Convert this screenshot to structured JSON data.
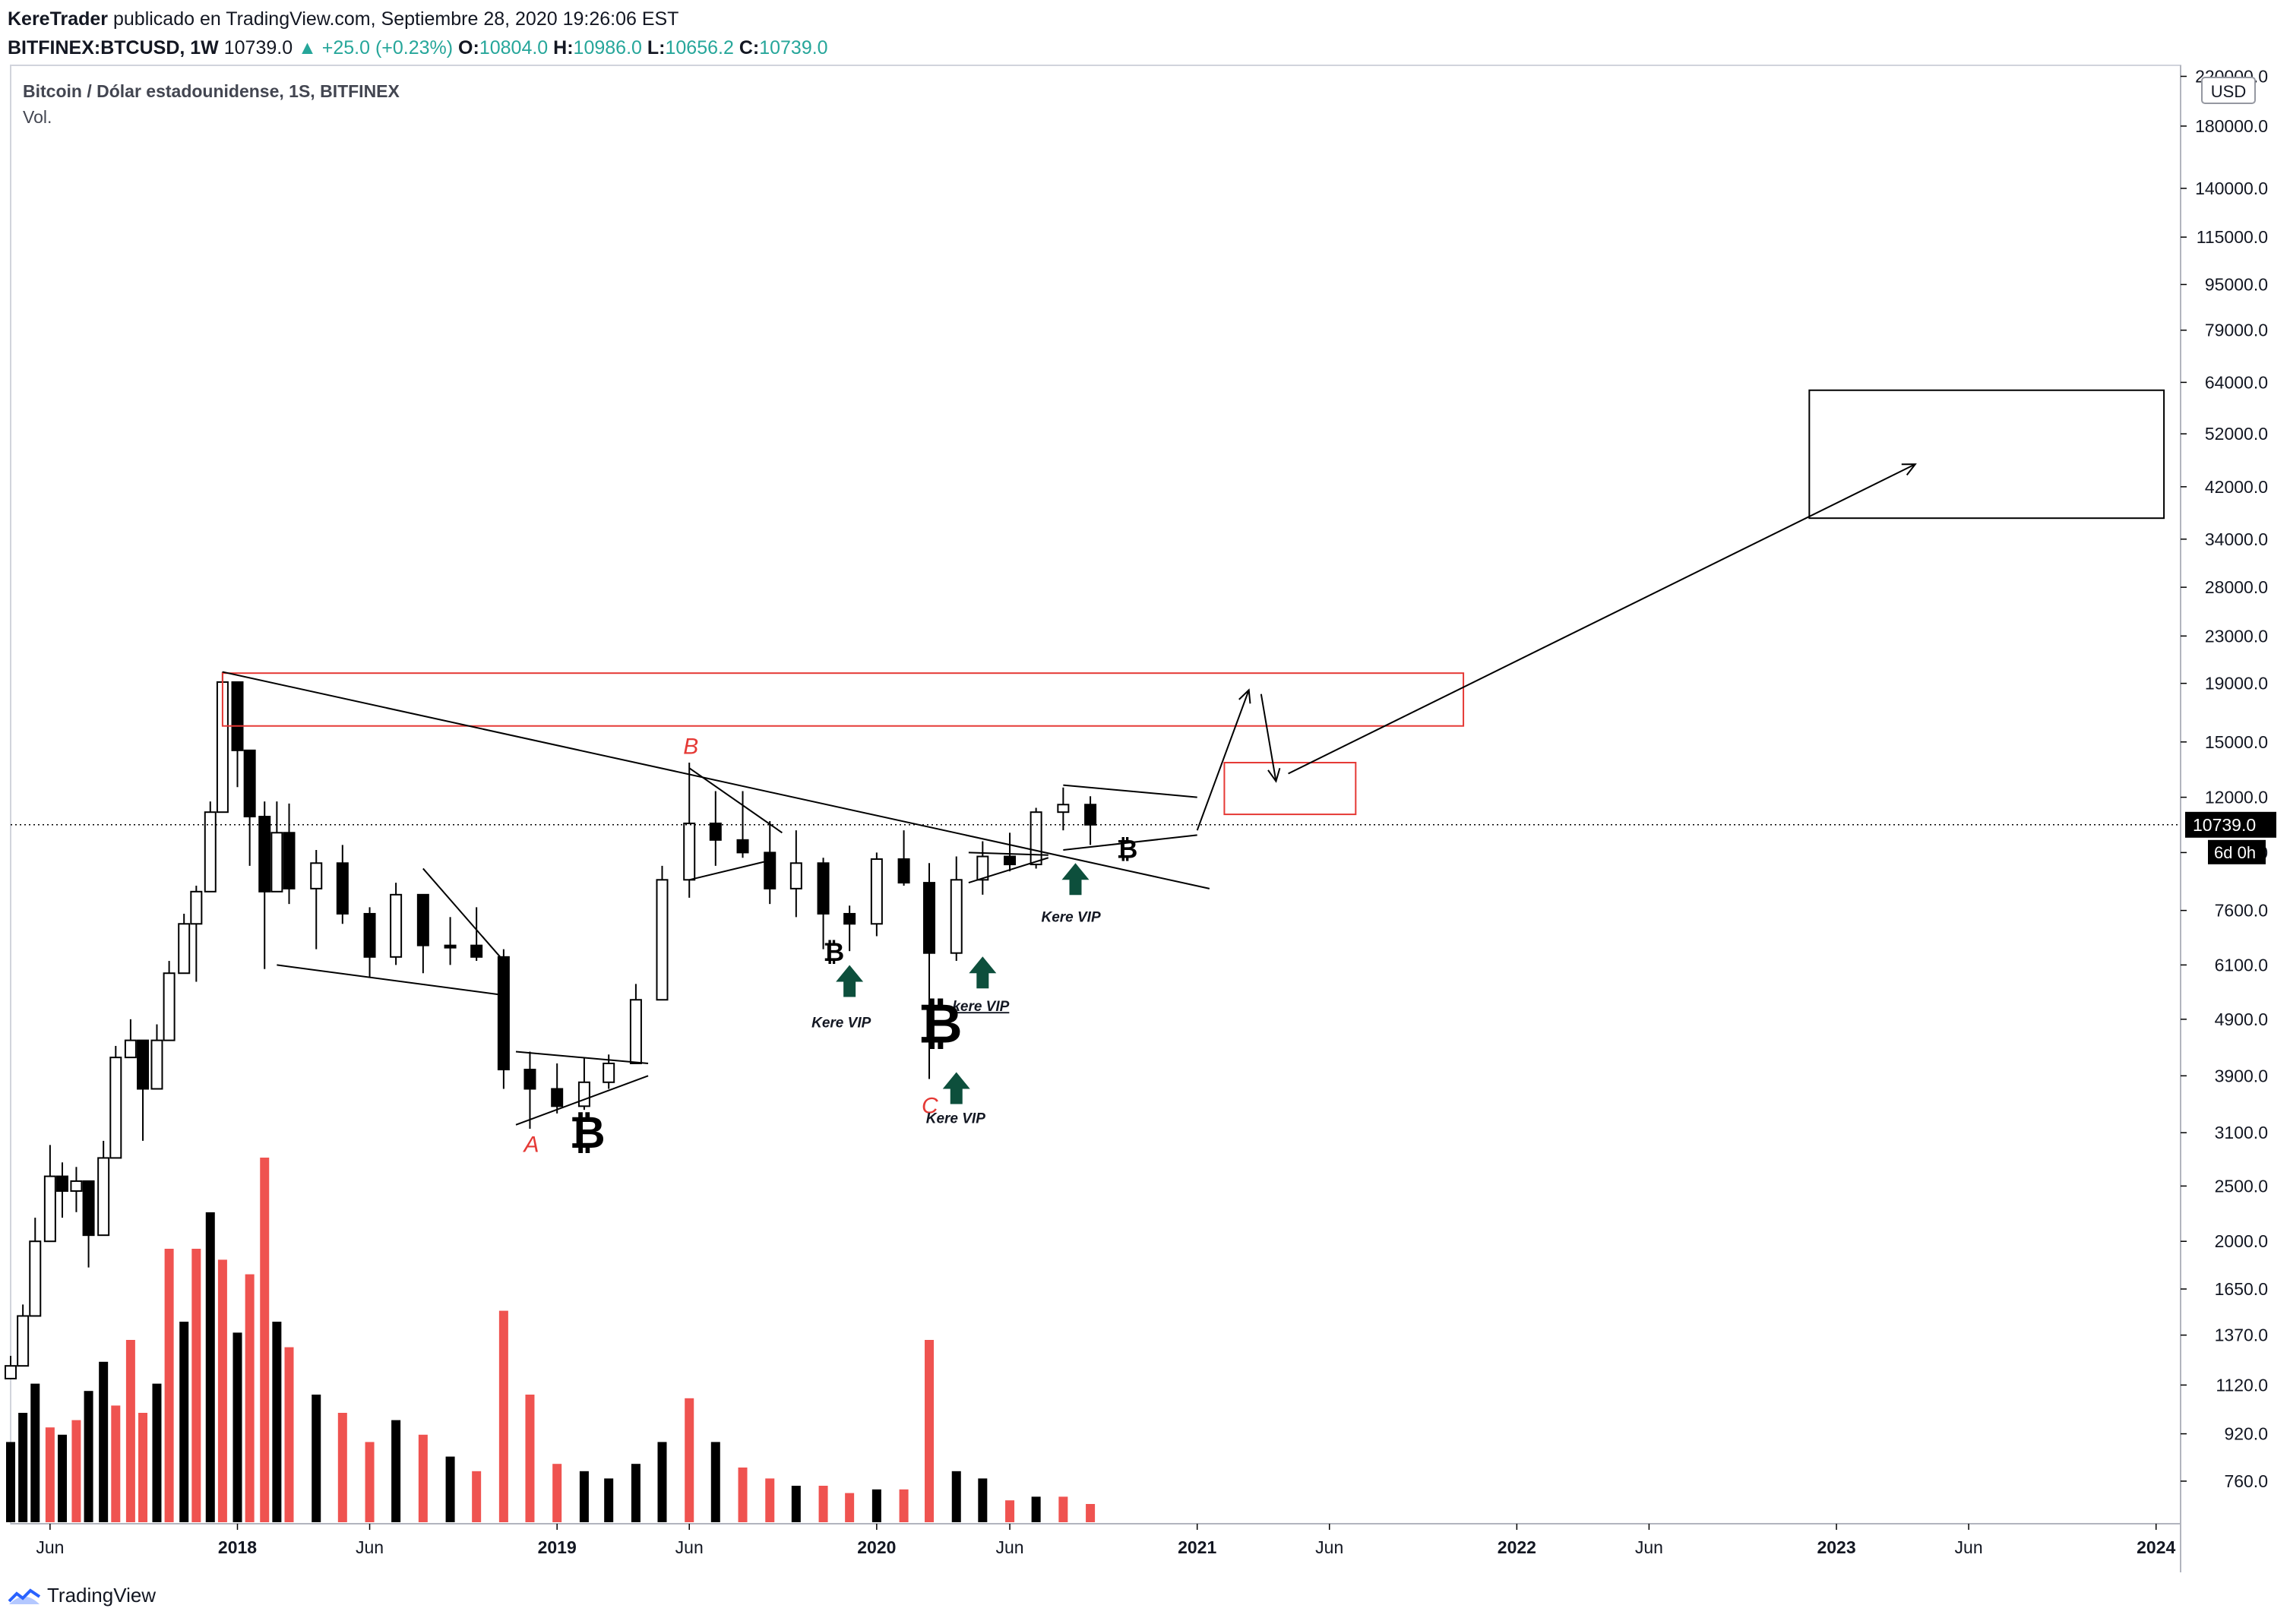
{
  "header": {
    "author": "KereTrader",
    "published": "publicado en TradingView.com, Septiembre 28, 2020 19:26:06 EST",
    "symbol": "BITFINEX:BTCUSD, 1W",
    "last": "10739.0",
    "change": "▲ +25.0 (+0.23%)",
    "o_label": "O:",
    "o_value": "10804.0",
    "h_label": "H:",
    "h_value": "10986.0",
    "l_label": "L:",
    "l_value": "10656.2",
    "c_label": "C:",
    "c_value": "10739.0"
  },
  "legend": {
    "title": "Bitcoin / Dólar estadounidense, 1S, BITFINEX",
    "volume": "Vol."
  },
  "price_axis": {
    "currency": "USD",
    "last_price": "10739.0",
    "countdown": "6d 0h",
    "ticks": [
      {
        "label": "220000.0",
        "value": 220000
      },
      {
        "label": "180000.0",
        "value": 180000
      },
      {
        "label": "140000.0",
        "value": 140000
      },
      {
        "label": "115000.0",
        "value": 115000
      },
      {
        "label": "95000.0",
        "value": 95000
      },
      {
        "label": "79000.0",
        "value": 79000
      },
      {
        "label": "64000.0",
        "value": 64000
      },
      {
        "label": "52000.0",
        "value": 52000
      },
      {
        "label": "42000.0",
        "value": 42000
      },
      {
        "label": "34000.0",
        "value": 34000
      },
      {
        "label": "28000.0",
        "value": 28000
      },
      {
        "label": "23000.0",
        "value": 23000
      },
      {
        "label": "19000.0",
        "value": 19000
      },
      {
        "label": "15000.0",
        "value": 15000
      },
      {
        "label": "12000.0",
        "value": 12000
      },
      {
        "label": "9600.0",
        "value": 9600
      },
      {
        "label": "7600.0",
        "value": 7600
      },
      {
        "label": "6100.0",
        "value": 6100
      },
      {
        "label": "4900.0",
        "value": 4900
      },
      {
        "label": "3900.0",
        "value": 3900
      },
      {
        "label": "3100.0",
        "value": 3100
      },
      {
        "label": "2500.0",
        "value": 2500
      },
      {
        "label": "2000.0",
        "value": 2000
      },
      {
        "label": "1650.0",
        "value": 1650
      },
      {
        "label": "1370.0",
        "value": 1370
      },
      {
        "label": "1120.0",
        "value": 1120
      },
      {
        "label": "920.0",
        "value": 920
      },
      {
        "label": "760.0",
        "value": 760
      }
    ]
  },
  "time_axis": {
    "ticks": [
      {
        "label": "Jun",
        "date": "2017-06-01",
        "bold": false
      },
      {
        "label": "2018",
        "date": "2018-01-01",
        "bold": true
      },
      {
        "label": "Jun",
        "date": "2018-06-01",
        "bold": false
      },
      {
        "label": "2019",
        "date": "2019-01-01",
        "bold": true
      },
      {
        "label": "Jun",
        "date": "2019-06-01",
        "bold": false
      },
      {
        "label": "2020",
        "date": "2020-01-01",
        "bold": true
      },
      {
        "label": "Jun",
        "date": "2020-06-01",
        "bold": false
      },
      {
        "label": "2021",
        "date": "2021-01-01",
        "bold": true
      },
      {
        "label": "Jun",
        "date": "2021-06-01",
        "bold": false
      },
      {
        "label": "2022",
        "date": "2022-01-01",
        "bold": true
      },
      {
        "label": "Jun",
        "date": "2022-06-01",
        "bold": false
      },
      {
        "label": "2023",
        "date": "2023-01-01",
        "bold": true
      },
      {
        "label": "Jun",
        "date": "2023-06-01",
        "bold": false
      },
      {
        "label": "2024",
        "date": "2024-01-01",
        "bold": true
      }
    ]
  },
  "colors": {
    "up": "#000000",
    "down": "#ef5350",
    "volume_up": "#000000",
    "volume_down": "#ef5350",
    "zone": "#e53935",
    "arrow_marker": "#0d4f3c",
    "wave_label": "#e53935"
  },
  "annotations": {
    "wave_a": "A",
    "wave_b": "B",
    "wave_c": "C",
    "kere_vip_1": "Kere VIP",
    "kere_vip_2": "kere VIP",
    "kere_vip_3": "Kere VIP",
    "kere_vip_4": "Kere VIP",
    "btc_symbol": "₿"
  },
  "footer": {
    "brand": "TradingView"
  },
  "chart_data": {
    "type": "candlestick",
    "title": "Bitcoin / Dólar estadounidense, 1S, BITFINEX",
    "scale": "log",
    "ylim": [
      640,
      230000
    ],
    "xlim": [
      "2017-04-17",
      "2024-01-29"
    ],
    "candles": [
      {
        "date": "2017-04-17",
        "close": 1210,
        "high": 1260,
        "low": 1150,
        "dir": "up"
      },
      {
        "date": "2017-05-01",
        "close": 1480,
        "high": 1550,
        "low": 1300,
        "dir": "up"
      },
      {
        "date": "2017-05-15",
        "close": 2000,
        "high": 2200,
        "low": 1700,
        "dir": "up"
      },
      {
        "date": "2017-06-01",
        "close": 2600,
        "high": 2950,
        "low": 2300,
        "dir": "up"
      },
      {
        "date": "2017-06-15",
        "close": 2450,
        "high": 2750,
        "low": 2200,
        "dir": "down"
      },
      {
        "date": "2017-07-01",
        "close": 2550,
        "high": 2700,
        "low": 2250,
        "dir": "up"
      },
      {
        "date": "2017-07-15",
        "close": 2050,
        "high": 2400,
        "low": 1800,
        "dir": "down"
      },
      {
        "date": "2017-08-01",
        "close": 2800,
        "high": 3000,
        "low": 2600,
        "dir": "up"
      },
      {
        "date": "2017-08-15",
        "close": 4200,
        "high": 4400,
        "low": 3900,
        "dir": "up"
      },
      {
        "date": "2017-09-01",
        "close": 4500,
        "high": 4900,
        "low": 4200,
        "dir": "up"
      },
      {
        "date": "2017-09-15",
        "close": 3700,
        "high": 4300,
        "low": 3000,
        "dir": "down"
      },
      {
        "date": "2017-10-01",
        "close": 4500,
        "high": 4800,
        "low": 4100,
        "dir": "up"
      },
      {
        "date": "2017-10-15",
        "close": 5900,
        "high": 6200,
        "low": 5500,
        "dir": "up"
      },
      {
        "date": "2017-11-01",
        "close": 7200,
        "high": 7500,
        "low": 6500,
        "dir": "up"
      },
      {
        "date": "2017-11-15",
        "close": 8200,
        "high": 8400,
        "low": 5700,
        "dir": "up"
      },
      {
        "date": "2017-12-01",
        "close": 11300,
        "high": 11800,
        "low": 9500,
        "dir": "up"
      },
      {
        "date": "2017-12-15",
        "close": 19100,
        "high": 19900,
        "low": 15000,
        "dir": "up"
      },
      {
        "date": "2018-01-01",
        "close": 14500,
        "high": 17200,
        "low": 12500,
        "dir": "down"
      },
      {
        "date": "2018-01-15",
        "close": 11100,
        "high": 14000,
        "low": 9100,
        "dir": "down"
      },
      {
        "date": "2018-02-01",
        "close": 8200,
        "high": 11800,
        "low": 6000,
        "dir": "down"
      },
      {
        "date": "2018-02-15",
        "close": 10400,
        "high": 11800,
        "low": 9000,
        "dir": "up"
      },
      {
        "date": "2018-03-01",
        "close": 8300,
        "high": 11700,
        "low": 7800,
        "dir": "down"
      },
      {
        "date": "2018-04-01",
        "close": 9200,
        "high": 9700,
        "low": 6500,
        "dir": "up"
      },
      {
        "date": "2018-05-01",
        "close": 7500,
        "high": 9900,
        "low": 7200,
        "dir": "down"
      },
      {
        "date": "2018-06-01",
        "close": 6300,
        "high": 7700,
        "low": 5800,
        "dir": "down"
      },
      {
        "date": "2018-07-01",
        "close": 8100,
        "high": 8500,
        "low": 6100,
        "dir": "up"
      },
      {
        "date": "2018-08-01",
        "close": 6600,
        "high": 8000,
        "low": 5900,
        "dir": "down"
      },
      {
        "date": "2018-09-01",
        "close": 6600,
        "high": 7400,
        "low": 6100,
        "dir": "down"
      },
      {
        "date": "2018-10-01",
        "close": 6300,
        "high": 7700,
        "low": 6200,
        "dir": "down"
      },
      {
        "date": "2018-11-01",
        "close": 4000,
        "high": 6500,
        "low": 3700,
        "dir": "down"
      },
      {
        "date": "2018-12-01",
        "close": 3700,
        "high": 4300,
        "low": 3150,
        "dir": "down"
      },
      {
        "date": "2019-01-01",
        "close": 3450,
        "high": 4100,
        "low": 3350,
        "dir": "down"
      },
      {
        "date": "2019-02-01",
        "close": 3800,
        "high": 4200,
        "low": 3400,
        "dir": "up"
      },
      {
        "date": "2019-03-01",
        "close": 4100,
        "high": 4250,
        "low": 3700,
        "dir": "up"
      },
      {
        "date": "2019-04-01",
        "close": 5300,
        "high": 5650,
        "low": 4100,
        "dir": "up"
      },
      {
        "date": "2019-05-01",
        "close": 8600,
        "high": 9100,
        "low": 5300,
        "dir": "up"
      },
      {
        "date": "2019-06-01",
        "close": 10800,
        "high": 13800,
        "low": 8000,
        "dir": "up"
      },
      {
        "date": "2019-07-01",
        "close": 10100,
        "high": 12300,
        "low": 9100,
        "dir": "down"
      },
      {
        "date": "2019-08-01",
        "close": 9600,
        "high": 12300,
        "low": 9400,
        "dir": "down"
      },
      {
        "date": "2019-09-01",
        "close": 8300,
        "high": 10900,
        "low": 7800,
        "dir": "down"
      },
      {
        "date": "2019-10-01",
        "close": 9200,
        "high": 10500,
        "low": 7400,
        "dir": "up"
      },
      {
        "date": "2019-11-01",
        "close": 7500,
        "high": 9400,
        "low": 6500,
        "dir": "down"
      },
      {
        "date": "2019-12-01",
        "close": 7200,
        "high": 7750,
        "low": 6450,
        "dir": "down"
      },
      {
        "date": "2020-01-01",
        "close": 9350,
        "high": 9600,
        "low": 6850,
        "dir": "up"
      },
      {
        "date": "2020-02-01",
        "close": 8500,
        "high": 10500,
        "low": 8400,
        "dir": "down"
      },
      {
        "date": "2020-03-01",
        "close": 6400,
        "high": 9200,
        "low": 3850,
        "dir": "down"
      },
      {
        "date": "2020-04-01",
        "close": 8600,
        "high": 9450,
        "low": 6200,
        "dir": "up"
      },
      {
        "date": "2020-05-01",
        "close": 9450,
        "high": 10050,
        "low": 8100,
        "dir": "up"
      },
      {
        "date": "2020-06-01",
        "close": 9150,
        "high": 10400,
        "low": 8900,
        "dir": "down"
      },
      {
        "date": "2020-07-01",
        "close": 11300,
        "high": 11500,
        "low": 9000,
        "dir": "up"
      },
      {
        "date": "2020-08-01",
        "close": 11650,
        "high": 12480,
        "low": 10500,
        "dir": "up"
      },
      {
        "date": "2020-09-01",
        "close": 10739,
        "high": 12050,
        "low": 9900,
        "dir": "down"
      }
    ],
    "volume": [
      {
        "date": "2017-04-17",
        "value": 0.22,
        "dir": "up"
      },
      {
        "date": "2017-05-01",
        "value": 0.3,
        "dir": "up"
      },
      {
        "date": "2017-05-15",
        "value": 0.38,
        "dir": "up"
      },
      {
        "date": "2017-06-01",
        "value": 0.26,
        "dir": "down"
      },
      {
        "date": "2017-06-15",
        "value": 0.24,
        "dir": "up"
      },
      {
        "date": "2017-07-01",
        "value": 0.28,
        "dir": "down"
      },
      {
        "date": "2017-07-15",
        "value": 0.36,
        "dir": "up"
      },
      {
        "date": "2017-08-01",
        "value": 0.44,
        "dir": "up"
      },
      {
        "date": "2017-08-15",
        "value": 0.32,
        "dir": "down"
      },
      {
        "date": "2017-09-01",
        "value": 0.5,
        "dir": "down"
      },
      {
        "date": "2017-09-15",
        "value": 0.3,
        "dir": "down"
      },
      {
        "date": "2017-10-01",
        "value": 0.38,
        "dir": "up"
      },
      {
        "date": "2017-10-15",
        "value": 0.75,
        "dir": "down"
      },
      {
        "date": "2017-11-01",
        "value": 0.55,
        "dir": "up"
      },
      {
        "date": "2017-11-15",
        "value": 0.75,
        "dir": "down"
      },
      {
        "date": "2017-12-01",
        "value": 0.85,
        "dir": "up"
      },
      {
        "date": "2017-12-15",
        "value": 0.72,
        "dir": "down"
      },
      {
        "date": "2018-01-01",
        "value": 0.52,
        "dir": "up"
      },
      {
        "date": "2018-01-15",
        "value": 0.68,
        "dir": "down"
      },
      {
        "date": "2018-02-01",
        "value": 1.0,
        "dir": "down"
      },
      {
        "date": "2018-02-15",
        "value": 0.55,
        "dir": "up"
      },
      {
        "date": "2018-03-01",
        "value": 0.48,
        "dir": "down"
      },
      {
        "date": "2018-04-01",
        "value": 0.35,
        "dir": "up"
      },
      {
        "date": "2018-05-01",
        "value": 0.3,
        "dir": "down"
      },
      {
        "date": "2018-06-01",
        "value": 0.22,
        "dir": "down"
      },
      {
        "date": "2018-07-01",
        "value": 0.28,
        "dir": "up"
      },
      {
        "date": "2018-08-01",
        "value": 0.24,
        "dir": "down"
      },
      {
        "date": "2018-09-01",
        "value": 0.18,
        "dir": "up"
      },
      {
        "date": "2018-10-01",
        "value": 0.14,
        "dir": "down"
      },
      {
        "date": "2018-11-01",
        "value": 0.58,
        "dir": "down"
      },
      {
        "date": "2018-12-01",
        "value": 0.35,
        "dir": "down"
      },
      {
        "date": "2019-01-01",
        "value": 0.16,
        "dir": "down"
      },
      {
        "date": "2019-02-01",
        "value": 0.14,
        "dir": "up"
      },
      {
        "date": "2019-03-01",
        "value": 0.12,
        "dir": "up"
      },
      {
        "date": "2019-04-01",
        "value": 0.16,
        "dir": "up"
      },
      {
        "date": "2019-05-01",
        "value": 0.22,
        "dir": "up"
      },
      {
        "date": "2019-06-01",
        "value": 0.34,
        "dir": "down"
      },
      {
        "date": "2019-07-01",
        "value": 0.22,
        "dir": "up"
      },
      {
        "date": "2019-08-01",
        "value": 0.15,
        "dir": "down"
      },
      {
        "date": "2019-09-01",
        "value": 0.12,
        "dir": "down"
      },
      {
        "date": "2019-10-01",
        "value": 0.1,
        "dir": "up"
      },
      {
        "date": "2019-11-01",
        "value": 0.1,
        "dir": "down"
      },
      {
        "date": "2019-12-01",
        "value": 0.08,
        "dir": "down"
      },
      {
        "date": "2020-01-01",
        "value": 0.09,
        "dir": "up"
      },
      {
        "date": "2020-02-01",
        "value": 0.09,
        "dir": "down"
      },
      {
        "date": "2020-03-01",
        "value": 0.5,
        "dir": "down"
      },
      {
        "date": "2020-04-01",
        "value": 0.14,
        "dir": "up"
      },
      {
        "date": "2020-05-01",
        "value": 0.12,
        "dir": "up"
      },
      {
        "date": "2020-06-01",
        "value": 0.06,
        "dir": "down"
      },
      {
        "date": "2020-07-01",
        "value": 0.07,
        "dir": "up"
      },
      {
        "date": "2020-08-01",
        "value": 0.07,
        "dir": "down"
      },
      {
        "date": "2020-09-01",
        "value": 0.05,
        "dir": "down"
      }
    ],
    "drawings": {
      "resistance_zone": {
        "from": "2017-12-15",
        "to": "2021-11-01",
        "low": 16000,
        "high": 19800
      },
      "retest_zone": {
        "from": "2021-02-01",
        "to": "2021-07-01",
        "low": 11200,
        "high": 13800
      },
      "target_zone": {
        "from": "2022-12-01",
        "to": "2024-01-10",
        "low": 37000,
        "high": 62000
      },
      "downtrend_line": {
        "from_date": "2017-12-15",
        "from_price": 19900,
        "to_date": "2021-01-15",
        "to_price": 8300
      },
      "target_arrow": {
        "from_date": "2021-04-15",
        "from_price": 13200,
        "to_date": "2023-04-01",
        "to_price": 46000
      },
      "breakout_arrow": {
        "from_date": "2021-01-01",
        "from_price": 10500,
        "to_date": "2021-03-01",
        "to_price": 18500
      },
      "pullback_arrow": {
        "from_date": "2021-03-15",
        "from_price": 18200,
        "to_date": "2021-04-01",
        "to_price": 12800
      }
    }
  }
}
